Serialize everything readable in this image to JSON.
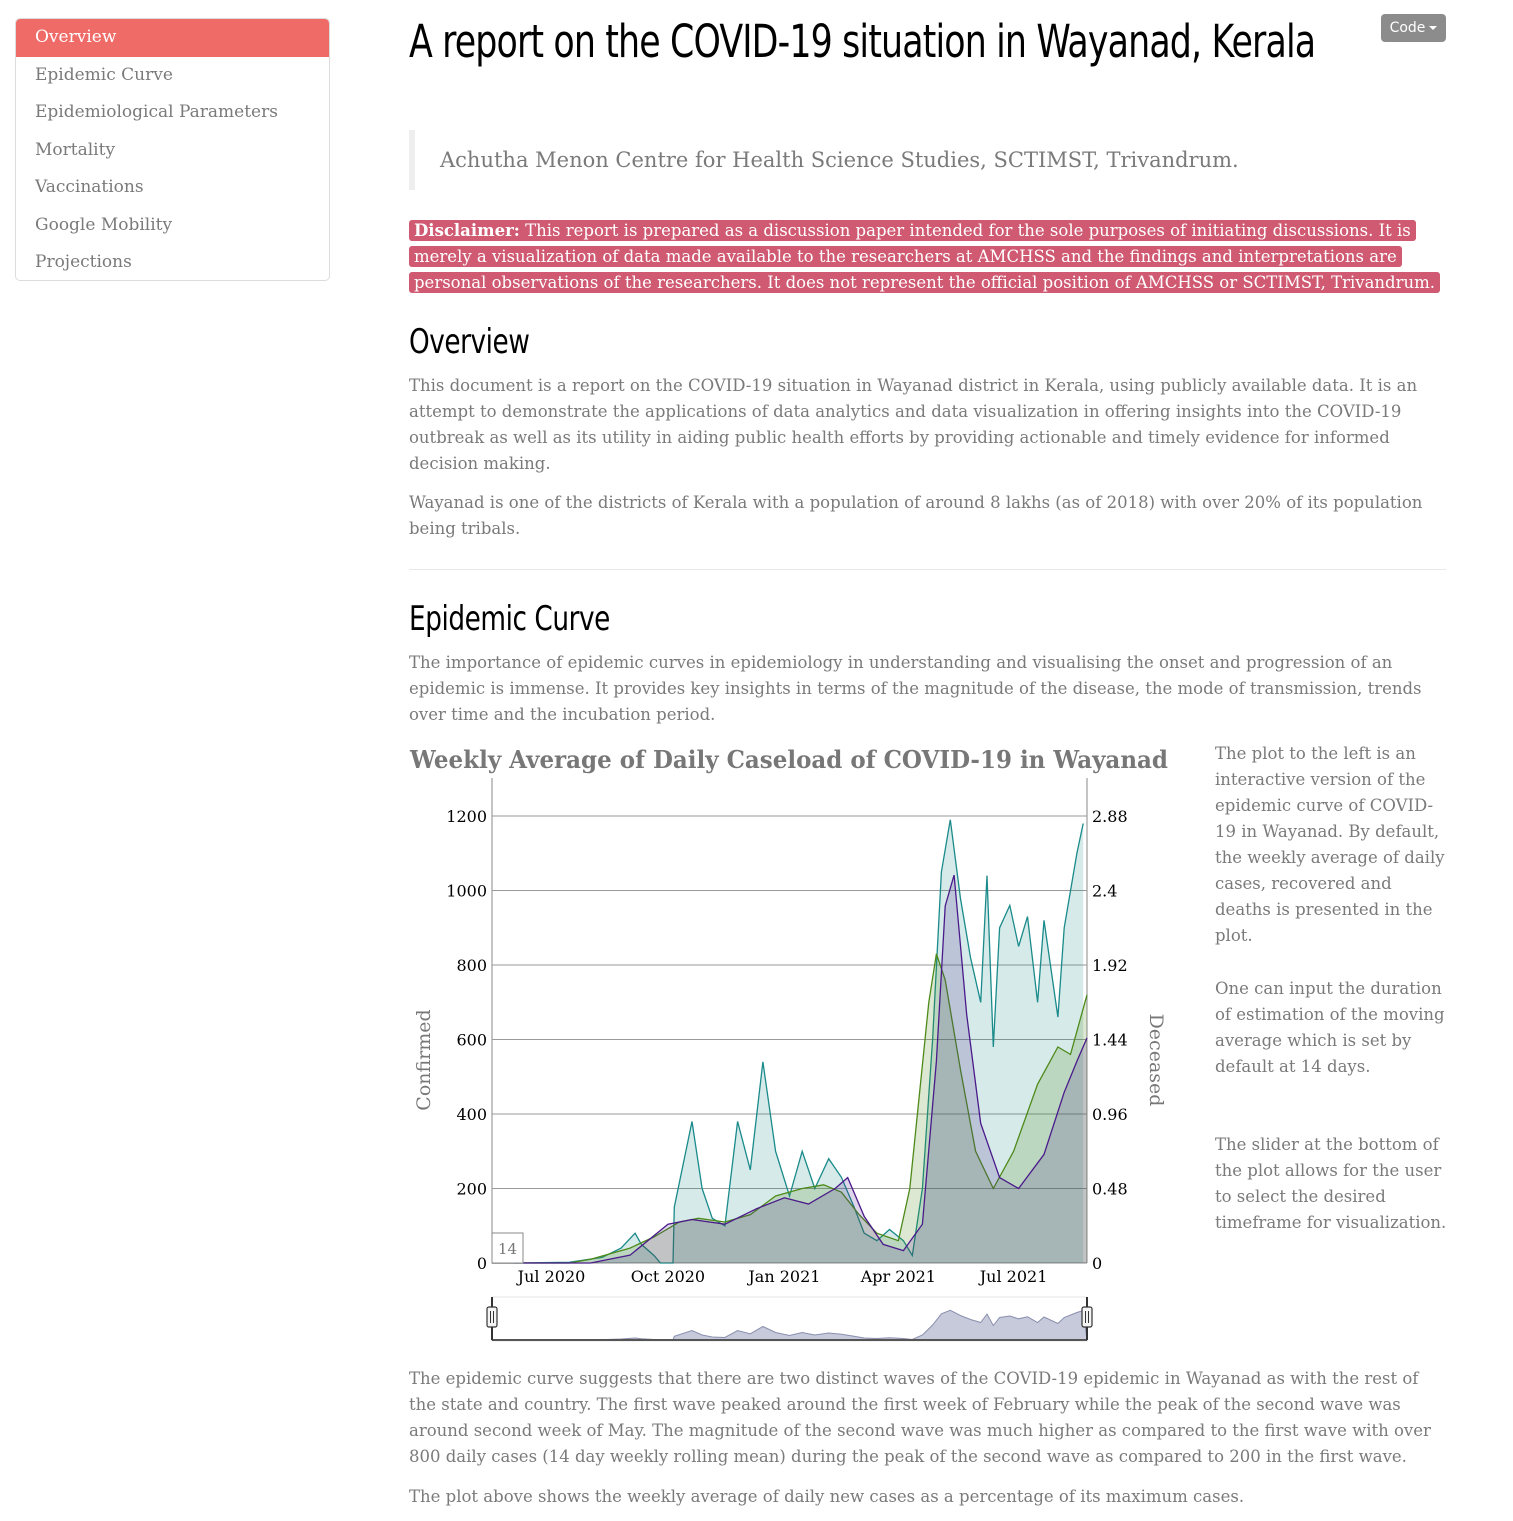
{
  "toc": {
    "items": [
      {
        "label": "Overview",
        "active": true
      },
      {
        "label": "Epidemic Curve",
        "active": false
      },
      {
        "label": "Epidemiological Parameters",
        "active": false
      },
      {
        "label": "Mortality",
        "active": false
      },
      {
        "label": "Vaccinations",
        "active": false
      },
      {
        "label": "Google Mobility",
        "active": false
      },
      {
        "label": "Projections",
        "active": false
      }
    ]
  },
  "code_button": {
    "label": "Code"
  },
  "header": {
    "title": "A report on the COVID-19 situation in Wayanad, Kerala",
    "subtitle": "Achutha Menon Centre for Health Science Studies, SCTIMST, Trivandrum."
  },
  "disclaimer": {
    "label": "Disclaimer:",
    "text": "This report is prepared as a discussion paper intended for the sole purposes of initiating discussions. It is merely a visualization of data made available to the researchers at AMCHSS and the findings and interpretations are personal observations of the researchers. It does not represent the official position of AMCHSS or SCTIMST, Trivandrum."
  },
  "overview": {
    "heading": "Overview",
    "p1": "This document is a report on the COVID-19 situation in Wayanad district in Kerala, using publicly available data. It is an attempt to demonstrate the applications of data analytics and data visualization in offering insights into the COVID-19 outbreak as well as its utility in aiding public health efforts by providing actionable and timely evidence for informed decision making.",
    "p2": "Wayanad is one of the districts of Kerala with a population of around 8 lakhs (as of 2018) with over 20% of its population being tribals."
  },
  "epidemic": {
    "heading": "Epidemic Curve",
    "p1": "The importance of epidemic curves in epidemiology in understanding and visualising the onset and progression of an epidemic is immense. It provides key insights in terms of the magnitude of the disease, the mode of transmission, trends over time and the incubation period.",
    "note1": "The plot to the left is an interactive version of the epidemic curve of COVID-19 in Wayanad. By default, the weekly average of daily cases, recovered and deaths is presented in the plot.",
    "note2": "One can input the duration of estimation of the moving average which is set by default at 14 days.",
    "note3": "The slider at the bottom of the plot allows for the user to select the desired timeframe for visualization.",
    "p2": "The epidemic curve suggests that there are two distinct waves of the COVID-19 epidemic in Wayanad as with the rest of the state and country. The first wave peaked around the first week of February while the peak of the second wave was around second week of May. The magnitude of the second wave was much higher as compared to the first wave with over 800 daily cases (14 day weekly rolling mean) during the peak of the second wave as compared to 200 in the first wave.",
    "p3": "The plot above shows the weekly average of daily new cases as a percentage of its maximum cases."
  },
  "chart_data": {
    "type": "area",
    "title": "Weekly Average of Daily Caseload of COVID-19 in Wayanad",
    "ylabel": "Confirmed",
    "y2label": "Deceased",
    "rolling_period": "14",
    "x_tick_labels": [
      "Jul 2020",
      "Oct 2020",
      "Jan 2021",
      "Apr 2021",
      "Jul 2021"
    ],
    "x_tick_dates": [
      "2020-07-01",
      "2020-10-01",
      "2021-01-01",
      "2021-04-01",
      "2021-07-01"
    ],
    "x_range": [
      "2020-05-15",
      "2021-08-28"
    ],
    "y_ticks": [
      0,
      200,
      400,
      600,
      800,
      1000,
      1200
    ],
    "y_ticks_labels": [
      "0",
      "200",
      "400",
      "600",
      "800",
      "1000",
      "1200"
    ],
    "y2_ticks_labels": [
      "0",
      "0.48",
      "0.96",
      "1.44",
      "1.92",
      "2.4",
      "2.88"
    ],
    "ylim": [
      0,
      1200
    ],
    "y2lim": [
      0,
      2.88
    ],
    "grid": true,
    "colors": {
      "confirmed": "#1a8a8a",
      "recovered": "#4e8a1a",
      "deceased": "#4a1a8a"
    },
    "series": [
      {
        "axis": "left",
        "points": [
          [
            "2020-05-15",
            20
          ],
          [
            "2020-06-01",
            20
          ],
          [
            "2020-06-02",
            0
          ],
          [
            "2020-07-15",
            2
          ],
          [
            "2020-08-10",
            15
          ],
          [
            "2020-08-25",
            40
          ],
          [
            "2020-09-05",
            80
          ],
          [
            "2020-09-10",
            50
          ],
          [
            "2020-09-20",
            20
          ],
          [
            "2020-09-25",
            0
          ],
          [
            "2020-10-05",
            0
          ],
          [
            "2020-10-06",
            150
          ],
          [
            "2020-10-20",
            380
          ],
          [
            "2020-10-28",
            200
          ],
          [
            "2020-11-05",
            120
          ],
          [
            "2020-11-15",
            100
          ],
          [
            "2020-11-25",
            380
          ],
          [
            "2020-12-05",
            250
          ],
          [
            "2020-12-15",
            540
          ],
          [
            "2020-12-25",
            300
          ],
          [
            "2021-01-05",
            180
          ],
          [
            "2021-01-15",
            300
          ],
          [
            "2021-01-25",
            200
          ],
          [
            "2021-02-05",
            280
          ],
          [
            "2021-02-15",
            230
          ],
          [
            "2021-02-25",
            150
          ],
          [
            "2021-03-05",
            80
          ],
          [
            "2021-03-15",
            60
          ],
          [
            "2021-03-25",
            90
          ],
          [
            "2021-04-05",
            60
          ],
          [
            "2021-04-12",
            20
          ],
          [
            "2021-04-20",
            200
          ],
          [
            "2021-04-28",
            600
          ],
          [
            "2021-05-05",
            1050
          ],
          [
            "2021-05-12",
            1190
          ],
          [
            "2021-05-20",
            980
          ],
          [
            "2021-05-28",
            820
          ],
          [
            "2021-06-05",
            700
          ],
          [
            "2021-06-10",
            1040
          ],
          [
            "2021-06-15",
            580
          ],
          [
            "2021-06-20",
            900
          ],
          [
            "2021-06-28",
            960
          ],
          [
            "2021-07-05",
            850
          ],
          [
            "2021-07-12",
            930
          ],
          [
            "2021-07-20",
            700
          ],
          [
            "2021-07-25",
            920
          ],
          [
            "2021-08-05",
            660
          ],
          [
            "2021-08-10",
            900
          ],
          [
            "2021-08-20",
            1100
          ],
          [
            "2021-08-25",
            1180
          ]
        ]
      },
      {
        "axis": "left",
        "points": [
          [
            "2020-05-15",
            0
          ],
          [
            "2020-07-15",
            0
          ],
          [
            "2020-08-01",
            10
          ],
          [
            "2020-09-01",
            40
          ],
          [
            "2020-09-20",
            70
          ],
          [
            "2020-10-10",
            110
          ],
          [
            "2020-10-25",
            120
          ],
          [
            "2020-11-15",
            110
          ],
          [
            "2020-12-05",
            130
          ],
          [
            "2020-12-25",
            180
          ],
          [
            "2021-01-15",
            200
          ],
          [
            "2021-02-01",
            210
          ],
          [
            "2021-02-15",
            190
          ],
          [
            "2021-03-01",
            130
          ],
          [
            "2021-03-15",
            80
          ],
          [
            "2021-04-01",
            60
          ],
          [
            "2021-04-10",
            200
          ],
          [
            "2021-04-25",
            700
          ],
          [
            "2021-05-01",
            830
          ],
          [
            "2021-05-08",
            760
          ],
          [
            "2021-05-20",
            520
          ],
          [
            "2021-06-01",
            300
          ],
          [
            "2021-06-15",
            200
          ],
          [
            "2021-07-01",
            300
          ],
          [
            "2021-07-20",
            480
          ],
          [
            "2021-08-05",
            580
          ],
          [
            "2021-08-15",
            560
          ],
          [
            "2021-08-28",
            720
          ]
        ]
      },
      {
        "axis": "right",
        "points": [
          [
            "2020-05-15",
            0
          ],
          [
            "2020-08-01",
            0
          ],
          [
            "2020-09-01",
            0.05
          ],
          [
            "2020-10-01",
            0.25
          ],
          [
            "2020-10-20",
            0.28
          ],
          [
            "2020-11-15",
            0.25
          ],
          [
            "2020-12-10",
            0.35
          ],
          [
            "2021-01-01",
            0.42
          ],
          [
            "2021-01-20",
            0.38
          ],
          [
            "2021-02-10",
            0.48
          ],
          [
            "2021-02-20",
            0.55
          ],
          [
            "2021-03-05",
            0.3
          ],
          [
            "2021-03-20",
            0.12
          ],
          [
            "2021-04-05",
            0.08
          ],
          [
            "2021-04-20",
            0.25
          ],
          [
            "2021-05-01",
            1.3
          ],
          [
            "2021-05-08",
            2.3
          ],
          [
            "2021-05-15",
            2.5
          ],
          [
            "2021-05-25",
            1.6
          ],
          [
            "2021-06-05",
            0.9
          ],
          [
            "2021-06-20",
            0.55
          ],
          [
            "2021-07-05",
            0.48
          ],
          [
            "2021-07-25",
            0.7
          ],
          [
            "2021-08-10",
            1.1
          ],
          [
            "2021-08-20",
            1.3
          ],
          [
            "2021-08-28",
            1.45
          ]
        ]
      }
    ]
  }
}
